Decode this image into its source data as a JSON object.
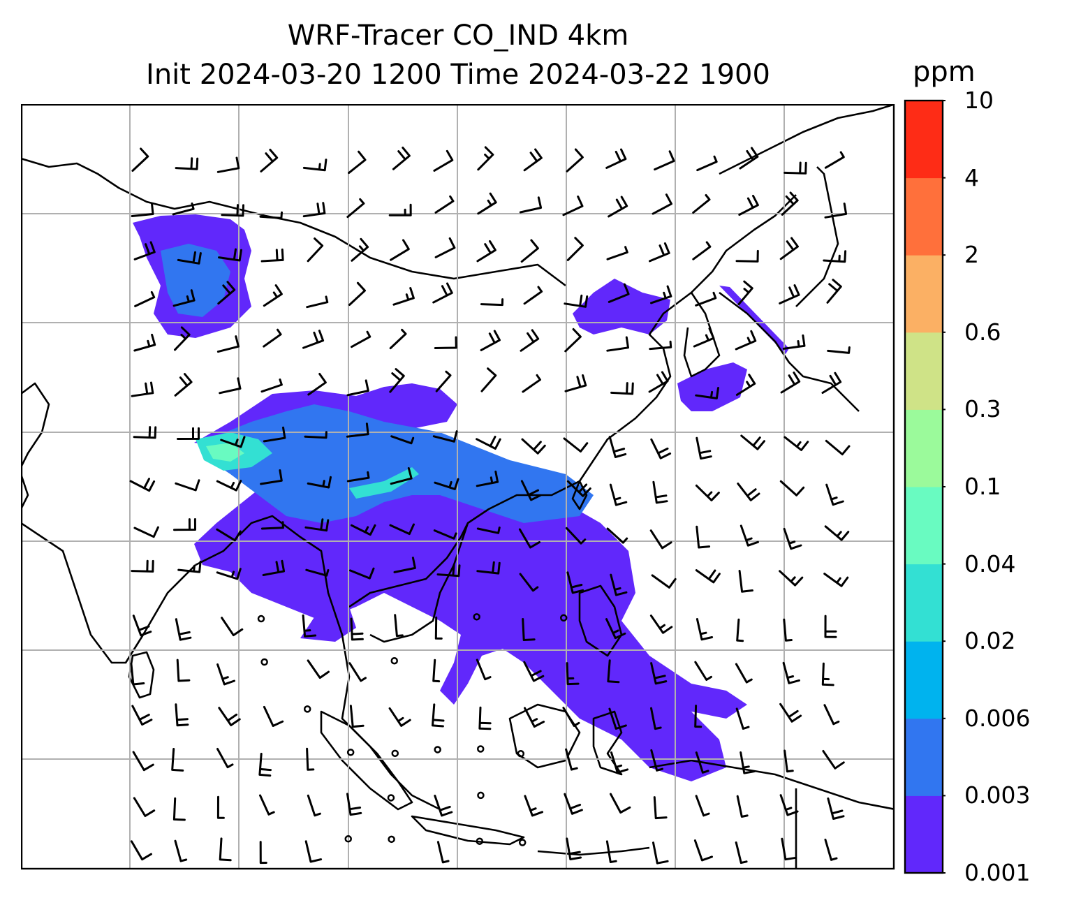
{
  "title": {
    "line1": "WRF-Tracer CO_IND 4km",
    "line2": "Init 2024-03-20 1200 Time 2024-03-22 1900"
  },
  "colorbar": {
    "unit": "ppm",
    "levels": [
      "0.001",
      "0.003",
      "0.006",
      "0.02",
      "0.04",
      "0.1",
      "0.3",
      "0.6",
      "2",
      "4",
      "10"
    ],
    "colors": [
      "#6128fb",
      "#3176f0",
      "#00b3ee",
      "#33e0d3",
      "#69fbc1",
      "#9bfa9b",
      "#cfe387",
      "#fbb064",
      "#ff703b",
      "#fe2c16"
    ]
  },
  "map": {
    "land_outline_color": "#000000",
    "gridline_color": "#b0b0b0",
    "plume_colors": {
      "outer": "#6128fb",
      "mid": "#3176f0",
      "inner": "#33e0d3",
      "core": "#69fbc1"
    },
    "wind_barbs": "black",
    "calm_markers": "open circles"
  }
}
